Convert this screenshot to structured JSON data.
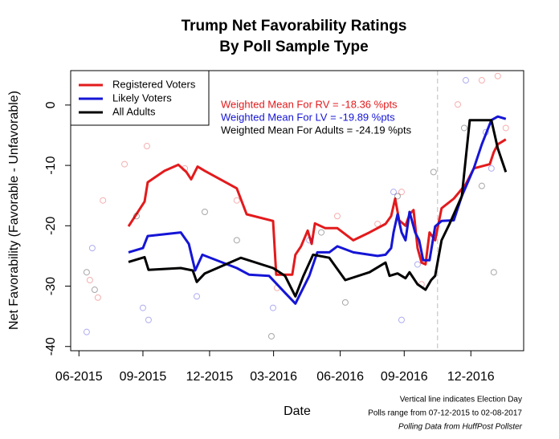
{
  "chart_data": {
    "type": "line",
    "title": [
      "Trump Net Favorability Ratings",
      "By Poll Sample Type"
    ],
    "xlabel": "Date",
    "ylabel": "Net Favorability (Favorable - Unfavorable)",
    "xlim": [
      2015.479,
      2017.178
    ],
    "ylim": [
      -40.7,
      5.7
    ],
    "xticks": [
      {
        "value": 2015.51,
        "label": "06-2015"
      },
      {
        "value": 2015.75,
        "label": "09-2015"
      },
      {
        "value": 2016.0,
        "label": "12-2015"
      },
      {
        "value": 2016.24,
        "label": "03-2016"
      },
      {
        "value": 2016.49,
        "label": "06-2016"
      },
      {
        "value": 2016.73,
        "label": "09-2016"
      },
      {
        "value": 2016.98,
        "label": "12-2016"
      }
    ],
    "yticks": [
      0,
      -10,
      -20,
      -30,
      -40
    ],
    "vline": 2016.855,
    "legend": "topleft",
    "series": [
      {
        "name": "Registered Voters",
        "color": "#e31a1c",
        "x": [
          2015.696,
          2015.756,
          2015.768,
          2015.831,
          2015.883,
          2015.913,
          2015.931,
          2015.955,
          2015.982,
          2016.102,
          2016.139,
          2016.238,
          2016.25,
          2016.31,
          2016.322,
          2016.343,
          2016.368,
          2016.383,
          2016.395,
          2016.434,
          2016.479,
          2016.539,
          2016.6,
          2016.66,
          2016.681,
          2016.696,
          2016.711,
          2016.735,
          2016.75,
          2016.765,
          2016.78,
          2016.795,
          2016.81,
          2016.825,
          2016.846,
          2016.87,
          2016.916,
          2016.961,
          2016.991,
          2017.051,
          2017.066,
          2017.081,
          2017.111
        ],
        "values": [
          -20.1,
          -16.0,
          -12.8,
          -10.9,
          -9.9,
          -11.1,
          -12.3,
          -10.2,
          -10.9,
          -13.8,
          -18.1,
          -19.2,
          -28.1,
          -28.1,
          -24.8,
          -23.4,
          -20.8,
          -23.0,
          -19.6,
          -20.4,
          -20.4,
          -22.4,
          -21.1,
          -19.7,
          -18.4,
          -15.5,
          -19.1,
          -20.0,
          -18.1,
          -17.4,
          -23.7,
          -26.1,
          -26.4,
          -21.1,
          -22.4,
          -17.1,
          -15.5,
          -13.1,
          -10.5,
          -9.8,
          -7.8,
          -6.5,
          -5.7
        ],
        "poll_x": [
          2015.6,
          2015.551,
          2015.581,
          2015.681,
          2015.765,
          2015.907,
          2016.102,
          2016.253,
          2016.479,
          2016.63,
          2016.72,
          2016.795,
          2016.931,
          2017.021,
          2017.081,
          2017.111
        ],
        "poll_values": [
          -15.8,
          -29.0,
          -31.9,
          -9.8,
          -6.8,
          -10.5,
          -15.8,
          -30.3,
          -18.4,
          -19.7,
          -14.4,
          -29.7,
          0.1,
          4.1,
          4.8,
          -3.8
        ]
      },
      {
        "name": "Likely Voters",
        "color": "#1515d6",
        "x": [
          2015.696,
          2015.75,
          2015.768,
          2015.892,
          2015.922,
          2015.946,
          2015.973,
          2016.102,
          2016.148,
          2016.223,
          2016.283,
          2016.322,
          2016.374,
          2016.404,
          2016.449,
          2016.479,
          2016.539,
          2016.63,
          2016.66,
          2016.681,
          2016.69,
          2016.705,
          2016.72,
          2016.735,
          2016.75,
          2016.771,
          2016.786,
          2016.801,
          2016.825,
          2016.846,
          2016.87,
          2016.916,
          2016.946,
          2016.991,
          2017.021,
          2017.057,
          2017.081,
          2017.111
        ],
        "values": [
          -24.4,
          -23.7,
          -21.7,
          -21.1,
          -23.0,
          -27.4,
          -24.8,
          -27.0,
          -28.1,
          -28.3,
          -31.1,
          -32.9,
          -28.3,
          -24.4,
          -24.4,
          -23.4,
          -24.4,
          -25.0,
          -24.8,
          -23.7,
          -21.1,
          -18.1,
          -21.1,
          -22.4,
          -17.7,
          -21.1,
          -22.4,
          -25.7,
          -25.7,
          -20.1,
          -19.2,
          -19.1,
          -15.1,
          -10.5,
          -6.5,
          -2.5,
          -1.9,
          -2.3
        ],
        "poll_x": [
          2015.539,
          2015.56,
          2015.75,
          2015.771,
          2015.952,
          2016.238,
          2016.374,
          2016.69,
          2016.72,
          2016.78,
          2016.961,
          2017.036,
          2017.057
        ],
        "poll_values": [
          -37.6,
          -23.7,
          -33.6,
          -35.6,
          -31.7,
          -33.6,
          -22.4,
          -14.4,
          -35.6,
          -26.4,
          4.1,
          -4.5,
          -10.5
        ]
      },
      {
        "name": "All Adults",
        "color": "#000000",
        "x": [
          2015.696,
          2015.756,
          2015.771,
          2015.892,
          2015.937,
          2015.952,
          2015.982,
          2016.117,
          2016.238,
          2016.283,
          2016.322,
          2016.352,
          2016.388,
          2016.449,
          2016.509,
          2016.6,
          2016.66,
          2016.675,
          2016.705,
          2016.735,
          2016.75,
          2016.78,
          2016.81,
          2016.831,
          2016.846,
          2016.87,
          2016.9,
          2016.946,
          2016.976,
          2017.021,
          2017.057,
          2017.081,
          2017.111
        ],
        "values": [
          -26.0,
          -25.2,
          -27.3,
          -27.0,
          -27.4,
          -29.3,
          -27.9,
          -25.3,
          -27.0,
          -28.3,
          -31.7,
          -28.3,
          -24.8,
          -25.3,
          -29.0,
          -27.7,
          -26.1,
          -28.3,
          -27.9,
          -28.7,
          -27.7,
          -29.7,
          -30.6,
          -29.0,
          -28.3,
          -22.4,
          -19.7,
          -15.1,
          -2.5,
          -2.5,
          -2.5,
          -7.2,
          -11.1
        ],
        "poll_x": [
          2015.539,
          2015.569,
          2015.726,
          2015.982,
          2016.102,
          2016.232,
          2016.419,
          2016.509,
          2016.705,
          2016.84,
          2016.955,
          2017.021,
          2017.066
        ],
        "poll_values": [
          -27.7,
          -30.6,
          -18.4,
          -17.7,
          -22.4,
          -38.3,
          -21.1,
          -32.7,
          -15.1,
          -11.1,
          -3.8,
          -13.4,
          -27.7
        ]
      }
    ],
    "annotations": [
      {
        "text": "Weighted Mean For RV = -18.36 %pts",
        "color": "#e31a1c"
      },
      {
        "text": "Weighted Mean For LV = -19.89 %pts",
        "color": "#1515d6"
      },
      {
        "text": "Weighted Mean For Adults = -24.19 %pts",
        "color": "#000000"
      }
    ],
    "notes": [
      "Vertical line indicates Election Day",
      "Polls range from 07-12-2015 to 02-08-2017",
      "Polling Data from HuffPost Pollster"
    ]
  }
}
